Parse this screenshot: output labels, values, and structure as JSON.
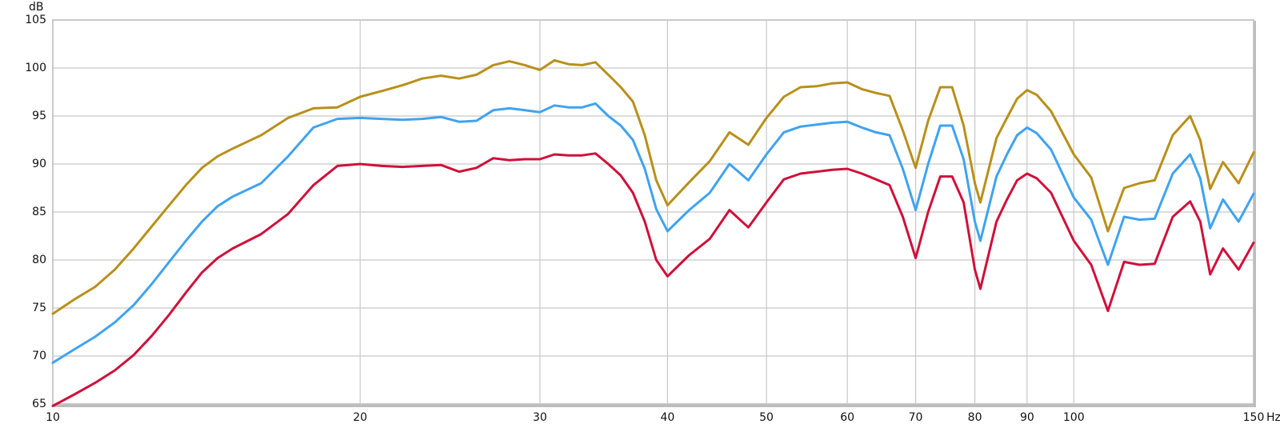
{
  "chart_data": {
    "type": "line",
    "y_label": "dB",
    "x_label": "Hz",
    "log_x": true,
    "grid": true,
    "xlim": [
      10,
      150
    ],
    "ylim": [
      65,
      105
    ],
    "xticks": [
      10,
      20,
      30,
      40,
      50,
      60,
      70,
      80,
      90,
      100,
      150
    ],
    "yticks": [
      65,
      70,
      75,
      80,
      85,
      90,
      95,
      100,
      105
    ],
    "x": [
      10,
      10.5,
      11,
      11.5,
      12,
      12.5,
      13,
      13.5,
      14,
      14.5,
      15,
      16,
      17,
      18,
      19,
      20,
      21,
      22,
      23,
      24,
      25,
      26,
      27,
      28,
      29,
      30,
      31,
      32,
      33,
      34,
      35,
      36,
      37,
      38,
      39,
      40,
      42,
      44,
      46,
      48,
      50,
      52,
      54,
      56,
      58,
      60,
      62,
      64,
      66,
      68,
      70,
      72,
      74,
      76,
      78,
      80,
      81,
      84,
      86,
      88,
      90,
      92,
      95,
      100,
      104,
      108,
      112,
      116,
      120,
      125,
      130,
      133,
      136,
      140,
      145,
      150
    ],
    "series": [
      {
        "color": "#b8901a",
        "values": [
          74.4,
          75.9,
          77.2,
          79,
          81.2,
          83.5,
          85.7,
          87.8,
          89.6,
          90.8,
          91.6,
          93,
          94.8,
          95.8,
          95.9,
          97,
          97.6,
          98.2,
          98.9,
          99.2,
          98.9,
          99.3,
          100.3,
          100.7,
          100.3,
          99.8,
          100.8,
          100.4,
          100.3,
          100.6,
          99.3,
          98,
          96.5,
          93,
          88.3,
          85.7,
          88.1,
          90.3,
          93.3,
          92,
          94.8,
          97,
          98,
          98.1,
          98.4,
          98.5,
          97.8,
          97.4,
          97.1,
          93.5,
          89.6,
          94.5,
          98,
          98,
          94,
          88,
          86,
          92.7,
          94.8,
          96.8,
          97.7,
          97.2,
          95.5,
          91,
          88.6,
          83,
          87.5,
          88,
          88.3,
          93,
          95,
          92.5,
          87.4,
          90.2,
          88,
          91.2
        ]
      },
      {
        "color": "#3fa3f0",
        "values": [
          69.3,
          70.7,
          72,
          73.5,
          75.3,
          77.5,
          79.8,
          82,
          84,
          85.6,
          86.6,
          88,
          90.8,
          93.8,
          94.7,
          94.8,
          94.7,
          94.6,
          94.7,
          94.9,
          94.4,
          94.5,
          95.6,
          95.8,
          95.6,
          95.4,
          96.1,
          95.9,
          95.9,
          96.3,
          95,
          94,
          92.5,
          89.5,
          85.3,
          83,
          85.2,
          87,
          90,
          88.3,
          91,
          93.3,
          93.9,
          94.1,
          94.3,
          94.4,
          93.8,
          93.3,
          93,
          89.5,
          85.2,
          90,
          94,
          94,
          90.5,
          84,
          82,
          88.7,
          91,
          93,
          93.8,
          93.2,
          91.5,
          86.5,
          84.2,
          79.5,
          84.5,
          84.2,
          84.3,
          89,
          91,
          88.5,
          83.3,
          86.3,
          84,
          86.9
        ]
      },
      {
        "color": "#d0103a",
        "values": [
          64.8,
          66,
          67.2,
          68.5,
          70.1,
          72.1,
          74.3,
          76.6,
          78.7,
          80.2,
          81.2,
          82.7,
          84.8,
          87.8,
          89.8,
          90,
          89.8,
          89.7,
          89.8,
          89.9,
          89.2,
          89.6,
          90.6,
          90.4,
          90.5,
          90.5,
          91,
          90.9,
          90.9,
          91.1,
          90,
          88.8,
          87,
          84,
          80,
          78.3,
          80.5,
          82.2,
          85.2,
          83.4,
          86,
          88.4,
          89,
          89.2,
          89.4,
          89.5,
          89,
          88.4,
          87.8,
          84.5,
          80.2,
          85,
          88.7,
          88.7,
          86,
          79,
          77,
          84,
          86.3,
          88.3,
          89,
          88.5,
          87,
          82,
          79.5,
          74.7,
          79.8,
          79.5,
          79.6,
          84.5,
          86.1,
          84,
          78.5,
          81.2,
          79,
          81.8
        ]
      }
    ]
  }
}
